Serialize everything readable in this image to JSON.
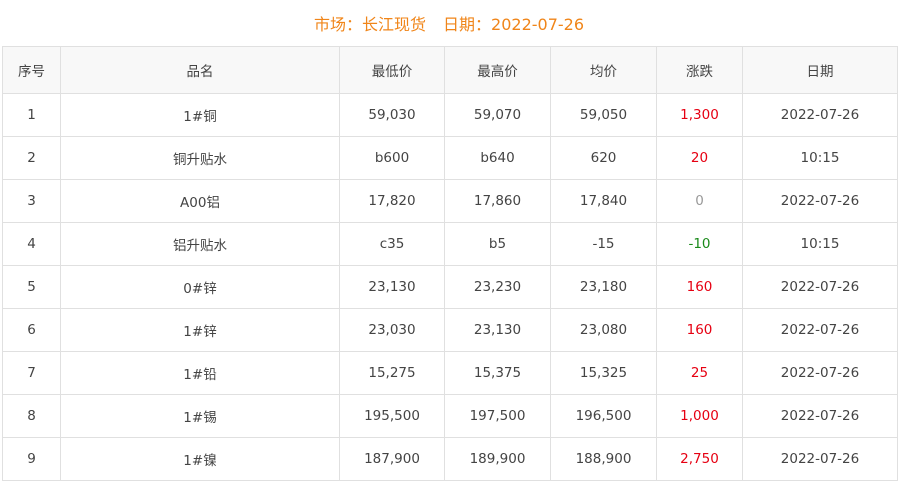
{
  "header": {
    "market": "市场：长江现货",
    "date": "日期：2022-07-26"
  },
  "colors": {
    "title": "#f08519",
    "up": "#e60012",
    "down": "#1a8a1a",
    "flat": "#999999"
  },
  "columns": [
    "序号",
    "品名",
    "最低价",
    "最高价",
    "均价",
    "涨跌",
    "日期"
  ],
  "rows": [
    {
      "no": "1",
      "name": "1#铜",
      "low": "59,030",
      "high": "59,070",
      "avg": "59,050",
      "chg": "1,300",
      "dir": "up",
      "date": "2022-07-26"
    },
    {
      "no": "2",
      "name": "铜升贴水",
      "low": "b600",
      "high": "b640",
      "avg": "620",
      "chg": "20",
      "dir": "up",
      "date": "10:15"
    },
    {
      "no": "3",
      "name": "A00铝",
      "low": "17,820",
      "high": "17,860",
      "avg": "17,840",
      "chg": "0",
      "dir": "flat",
      "date": "2022-07-26"
    },
    {
      "no": "4",
      "name": "铝升贴水",
      "low": "c35",
      "high": "b5",
      "avg": "-15",
      "chg": "-10",
      "dir": "down",
      "date": "10:15"
    },
    {
      "no": "5",
      "name": "0#锌",
      "low": "23,130",
      "high": "23,230",
      "avg": "23,180",
      "chg": "160",
      "dir": "up",
      "date": "2022-07-26"
    },
    {
      "no": "6",
      "name": "1#锌",
      "low": "23,030",
      "high": "23,130",
      "avg": "23,080",
      "chg": "160",
      "dir": "up",
      "date": "2022-07-26"
    },
    {
      "no": "7",
      "name": "1#铅",
      "low": "15,275",
      "high": "15,375",
      "avg": "15,325",
      "chg": "25",
      "dir": "up",
      "date": "2022-07-26"
    },
    {
      "no": "8",
      "name": "1#锡",
      "low": "195,500",
      "high": "197,500",
      "avg": "196,500",
      "chg": "1,000",
      "dir": "up",
      "date": "2022-07-26"
    },
    {
      "no": "9",
      "name": "1#镍",
      "low": "187,900",
      "high": "189,900",
      "avg": "188,900",
      "chg": "2,750",
      "dir": "up",
      "date": "2022-07-26"
    }
  ]
}
